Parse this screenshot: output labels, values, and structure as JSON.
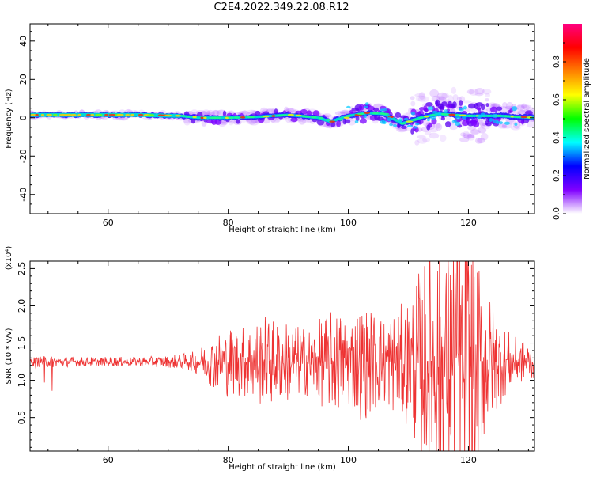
{
  "title": "C2E4.2022.349.22.08.R12",
  "chart_data": [
    {
      "type": "heatmap",
      "title": "C2E4.2022.349.22.08.R12",
      "xlabel": "Height of straight line (km)",
      "ylabel": "Frequency (Hz)",
      "xlim": [
        47,
        131
      ],
      "ylim": [
        -50,
        49
      ],
      "xticks": [
        60,
        80,
        100,
        120
      ],
      "yticks": [
        -40,
        -20,
        0,
        20,
        40
      ],
      "colorbar": {
        "label": "Normalized spectral amplitude",
        "range": [
          0,
          1
        ],
        "ticks": [
          "0.0",
          "0.2",
          "0.4",
          "0.6",
          "0.8"
        ],
        "colormap": [
          "#ffffff",
          "#8000ff",
          "#0000ff",
          "#00ffff",
          "#00ff00",
          "#ffff00",
          "#ff8000",
          "#ff0000",
          "#ff0080"
        ]
      },
      "ridge_frequency_hz": [
        [
          47,
          1.5
        ],
        [
          55,
          1.5
        ],
        [
          65,
          1.5
        ],
        [
          72,
          1.0
        ],
        [
          75,
          0.0
        ],
        [
          80,
          0.0
        ],
        [
          85,
          0.5
        ],
        [
          90,
          1.5
        ],
        [
          95,
          0.0
        ],
        [
          97,
          -2.0
        ],
        [
          100,
          1.0
        ],
        [
          103,
          2.5
        ],
        [
          106,
          2.0
        ],
        [
          109,
          -3.0
        ],
        [
          112,
          0.0
        ],
        [
          115,
          2.0
        ],
        [
          120,
          1.0
        ],
        [
          125,
          1.0
        ],
        [
          131,
          0.0
        ]
      ]
    },
    {
      "type": "line",
      "xlabel": "Height of straight line (km)",
      "ylabel": "SNR (10 * v/v)",
      "multiplier_label": "(x10⁴)",
      "xlim": [
        47,
        131
      ],
      "ylim": [
        0.05,
        2.6
      ],
      "xticks": [
        60,
        80,
        100,
        120
      ],
      "yticks": [
        "0.5",
        "1.0",
        "1.5",
        "2.0",
        "2.5"
      ],
      "series": [
        {
          "color": "#ee3333",
          "baseline": 1.25,
          "envelope": [
            [
              47,
              0.04
            ],
            [
              50,
              0.05
            ],
            [
              55,
              0.04
            ],
            [
              60,
              0.04
            ],
            [
              65,
              0.04
            ],
            [
              70,
              0.05
            ],
            [
              74,
              0.08
            ],
            [
              76,
              0.15
            ],
            [
              78,
              0.25
            ],
            [
              80,
              0.3
            ],
            [
              82,
              0.3
            ],
            [
              84,
              0.35
            ],
            [
              86,
              0.4
            ],
            [
              88,
              0.35
            ],
            [
              90,
              0.35
            ],
            [
              92,
              0.3
            ],
            [
              94,
              0.3
            ],
            [
              96,
              0.4
            ],
            [
              98,
              0.45
            ],
            [
              100,
              0.4
            ],
            [
              102,
              0.5
            ],
            [
              104,
              0.45
            ],
            [
              106,
              0.4
            ],
            [
              108,
              0.45
            ],
            [
              110,
              0.55
            ],
            [
              112,
              0.8
            ],
            [
              114,
              1.0
            ],
            [
              116,
              1.15
            ],
            [
              118,
              1.15
            ],
            [
              120,
              1.2
            ],
            [
              122,
              0.8
            ],
            [
              124,
              0.5
            ],
            [
              126,
              0.3
            ],
            [
              128,
              0.2
            ],
            [
              131,
              0.15
            ]
          ],
          "spikes": [
            [
              48,
              1.15
            ],
            [
              49.4,
              0.97
            ],
            [
              50.7,
              0.86
            ],
            [
              119.2,
              0.97
            ],
            [
              120.5,
              2.55
            ],
            [
              121.1,
              0.08
            ],
            [
              116.3,
              2.44
            ],
            [
              117.8,
              2.44
            ]
          ]
        }
      ]
    }
  ]
}
